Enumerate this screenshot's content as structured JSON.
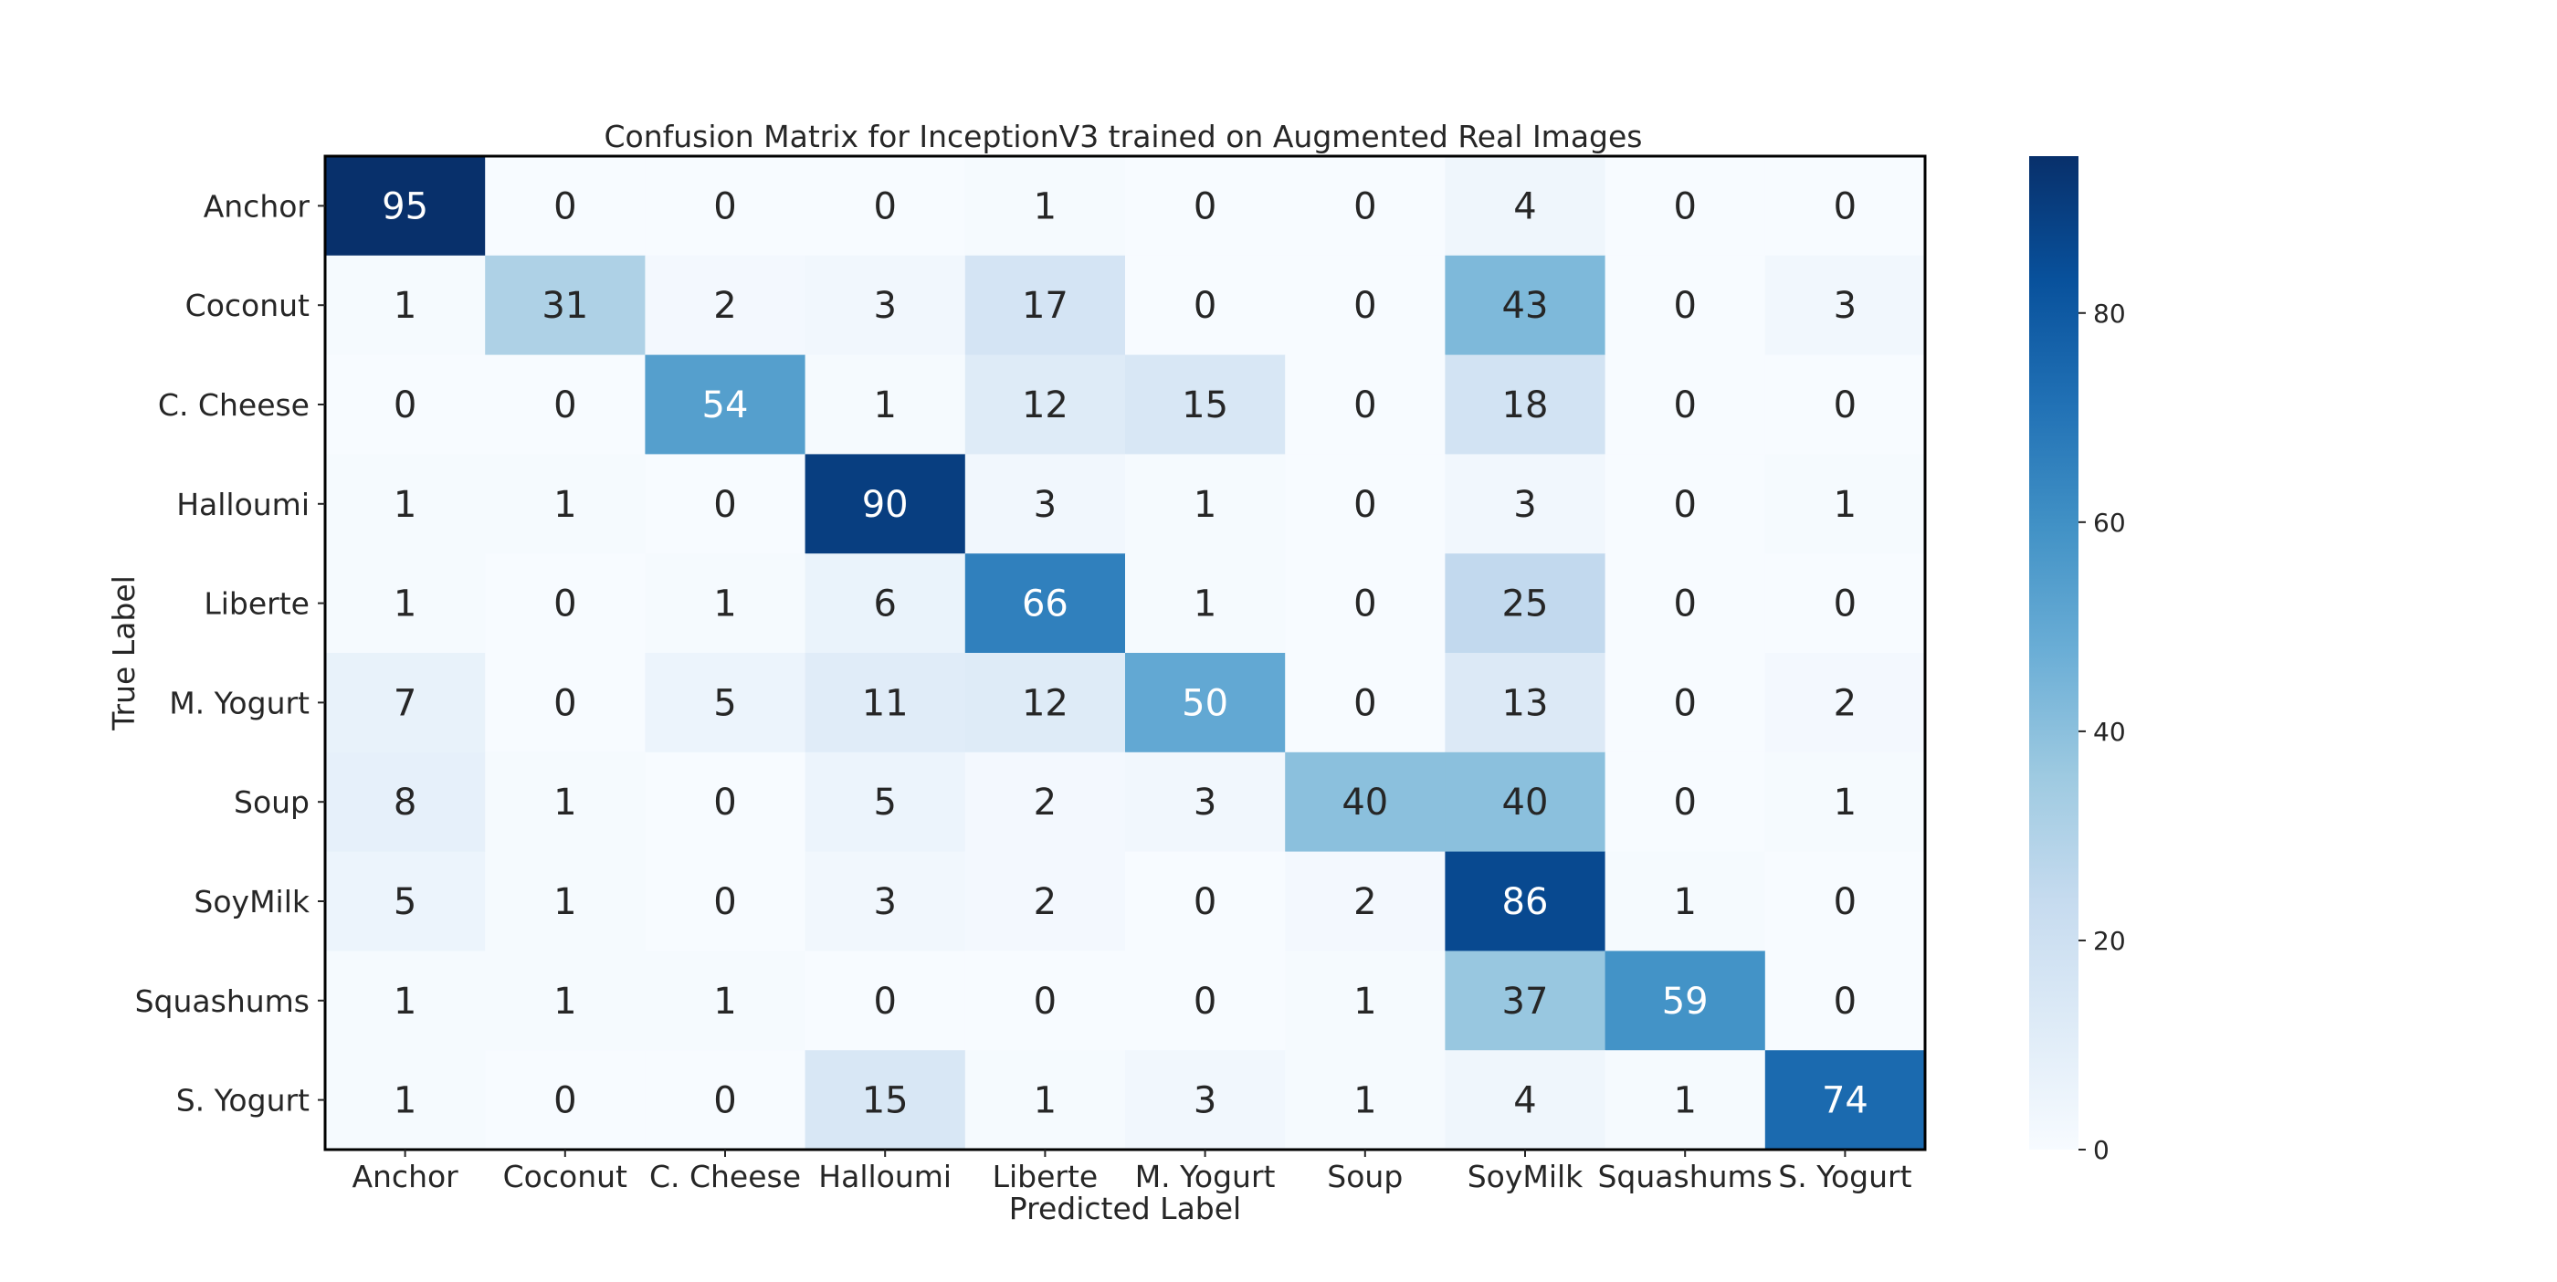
{
  "chart_data": {
    "type": "heatmap",
    "title": "Confusion Matrix for InceptionV3 trained on Augmented Real Images",
    "xlabel": "Predicted Label",
    "ylabel": "True Label",
    "row_labels": [
      "Anchor",
      "Coconut",
      "C. Cheese",
      "Halloumi",
      "Liberte",
      "M. Yogurt",
      "Soup",
      "SoyMilk",
      "Squashums",
      "S. Yogurt"
    ],
    "col_labels": [
      "Anchor",
      "Coconut",
      "C. Cheese",
      "Halloumi",
      "Liberte",
      "M. Yogurt",
      "Soup",
      "SoyMilk",
      "Squashums",
      "S. Yogurt"
    ],
    "values": [
      [
        95,
        0,
        0,
        0,
        1,
        0,
        0,
        4,
        0,
        0
      ],
      [
        1,
        31,
        2,
        3,
        17,
        0,
        0,
        43,
        0,
        3
      ],
      [
        0,
        0,
        54,
        1,
        12,
        15,
        0,
        18,
        0,
        0
      ],
      [
        1,
        1,
        0,
        90,
        3,
        1,
        0,
        3,
        0,
        1
      ],
      [
        1,
        0,
        1,
        6,
        66,
        1,
        0,
        25,
        0,
        0
      ],
      [
        7,
        0,
        5,
        11,
        12,
        50,
        0,
        13,
        0,
        2
      ],
      [
        8,
        1,
        0,
        5,
        2,
        3,
        40,
        40,
        0,
        1
      ],
      [
        5,
        1,
        0,
        3,
        2,
        0,
        2,
        86,
        1,
        0
      ],
      [
        1,
        1,
        1,
        0,
        0,
        0,
        1,
        37,
        59,
        0
      ],
      [
        1,
        0,
        0,
        15,
        1,
        3,
        1,
        4,
        1,
        74
      ]
    ],
    "colormap": "Blues",
    "vmin": 0,
    "vmax": 95,
    "colorbar_ticks": [
      0,
      20,
      40,
      60,
      80
    ],
    "text_colors": {
      "dark": "#262626",
      "light": "#ffffff"
    }
  }
}
